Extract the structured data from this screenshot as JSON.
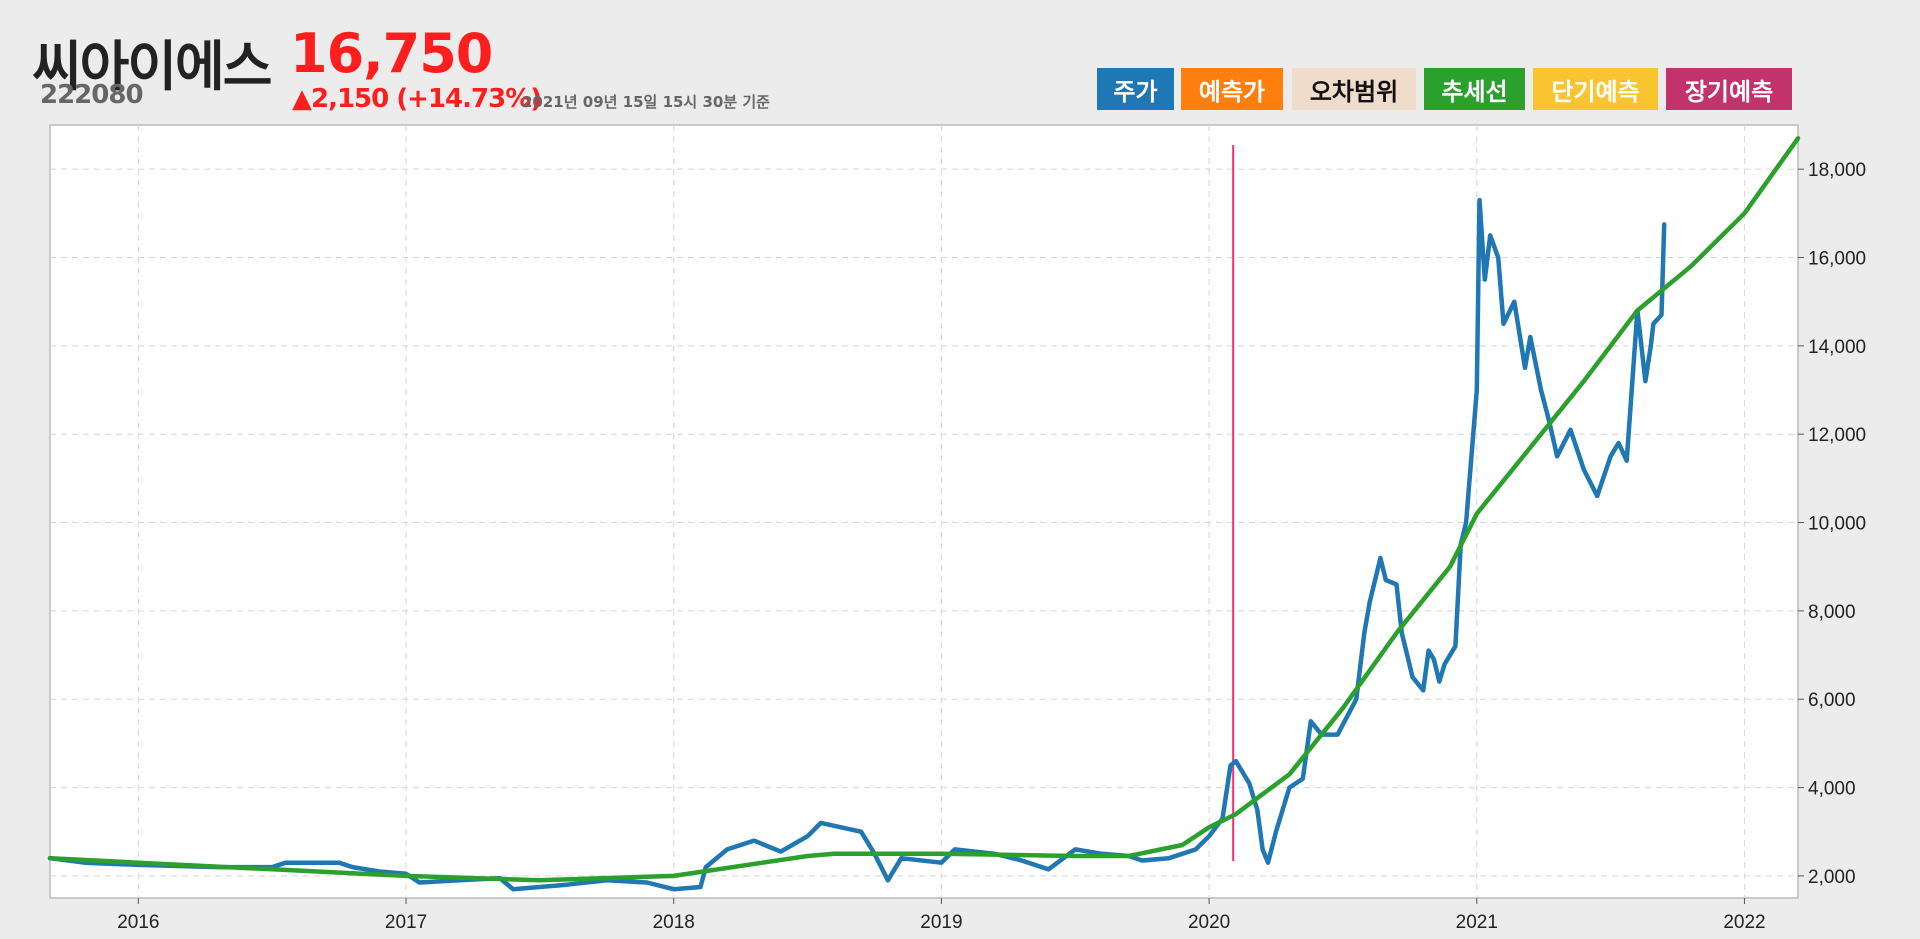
{
  "header": {
    "name": "씨아이에스",
    "code": "222080",
    "price": "16,750",
    "change": "▲2,150 (+14.73%)",
    "timestamp": "2021년 09년 15일 15시 30분 기준"
  },
  "legend": [
    {
      "label": "주가",
      "color": "#1f77b4",
      "text_color": "#ffffff"
    },
    {
      "label": "예측가",
      "color": "#ff7f0e",
      "text_color": "#ffffff"
    },
    {
      "label": "오차범위",
      "color": "#f0dccb",
      "text_color": "#111111"
    },
    {
      "label": "추세선",
      "color": "#2ca02c",
      "text_color": "#ffffff"
    },
    {
      "label": "단기예측",
      "color": "#f8c531",
      "text_color": "#ffffff"
    },
    {
      "label": "장기예측",
      "color": "#c2336c",
      "text_color": "#ffffff"
    }
  ],
  "chart_data": {
    "type": "line",
    "xlim": [
      2015.67,
      2022.2
    ],
    "ylim": [
      1500,
      19000
    ],
    "x_ticks": [
      2016,
      2017,
      2018,
      2019,
      2020,
      2021,
      2022
    ],
    "x_tick_labels": [
      "2016",
      "2017",
      "2018",
      "2019",
      "2020",
      "2021",
      "2022"
    ],
    "y_ticks": [
      2000,
      4000,
      6000,
      8000,
      10000,
      12000,
      14000,
      16000,
      18000
    ],
    "y_tick_labels": [
      "2,000",
      "4,000",
      "6,000",
      "8,000",
      "10,000",
      "12,000",
      "14,000",
      "16,000",
      "18,000"
    ],
    "grid": true,
    "vline_x": 2020.09,
    "vline_color": "#ff2d6e",
    "series": [
      {
        "color": "#1f77b4",
        "x": [
          2015.67,
          2015.8,
          2016.0,
          2016.3,
          2016.5,
          2016.55,
          2016.75,
          2016.8,
          2016.9,
          2017.0,
          2017.05,
          2017.2,
          2017.35,
          2017.4,
          2017.6,
          2017.75,
          2017.9,
          2018.0,
          2018.1,
          2018.12,
          2018.2,
          2018.3,
          2018.4,
          2018.5,
          2018.55,
          2018.7,
          2018.75,
          2018.8,
          2018.85,
          2019.0,
          2019.05,
          2019.2,
          2019.3,
          2019.4,
          2019.5,
          2019.6,
          2019.7,
          2019.75,
          2019.85,
          2019.95,
          2020.0,
          2020.05,
          2020.08,
          2020.1,
          2020.15,
          2020.18,
          2020.2,
          2020.22,
          2020.25,
          2020.3,
          2020.35,
          2020.38,
          2020.42,
          2020.48,
          2020.55,
          2020.58,
          2020.6,
          2020.62,
          2020.64,
          2020.66,
          2020.7,
          2020.72,
          2020.74,
          2020.76,
          2020.8,
          2020.82,
          2020.84,
          2020.86,
          2020.88,
          2020.92,
          2020.94,
          2020.96,
          2021.0,
          2021.01,
          2021.03,
          2021.05,
          2021.08,
          2021.1,
          2021.14,
          2021.18,
          2021.2,
          2021.24,
          2021.27,
          2021.3,
          2021.35,
          2021.4,
          2021.45,
          2021.5,
          2021.53,
          2021.56,
          2021.6,
          2021.63,
          2021.65,
          2021.66,
          2021.69,
          2021.7
        ],
        "values": [
          2400,
          2300,
          2250,
          2200,
          2200,
          2300,
          2300,
          2200,
          2100,
          2050,
          1850,
          1900,
          1950,
          1700,
          1800,
          1900,
          1850,
          1700,
          1750,
          2200,
          2600,
          2800,
          2550,
          2900,
          3200,
          3000,
          2500,
          1900,
          2400,
          2300,
          2600,
          2500,
          2350,
          2150,
          2600,
          2500,
          2450,
          2350,
          2400,
          2600,
          2900,
          3300,
          4500,
          4600,
          4100,
          3500,
          2600,
          2300,
          3000,
          4000,
          4200,
          5500,
          5200,
          5200,
          6000,
          7500,
          8200,
          8700,
          9200,
          8700,
          8600,
          7500,
          7000,
          6500,
          6200,
          7100,
          6900,
          6400,
          6800,
          7200,
          9500,
          10000,
          13000,
          17300,
          15500,
          16500,
          16000,
          14500,
          15000,
          13500,
          14200,
          13000,
          12300,
          11500,
          12100,
          11200,
          10600,
          11500,
          11800,
          11400,
          14800,
          13200,
          14000,
          14500,
          14700,
          16750
        ]
      },
      {
        "color": "#2ca02c",
        "x": [
          2015.67,
          2016.0,
          2016.5,
          2017.0,
          2017.5,
          2018.0,
          2018.5,
          2018.6,
          2019.0,
          2019.5,
          2019.7,
          2019.9,
          2020.0,
          2020.1,
          2020.3,
          2020.5,
          2020.7,
          2020.9,
          2021.0,
          2021.2,
          2021.4,
          2021.6,
          2021.8,
          2022.0,
          2022.2
        ],
        "values": [
          2400,
          2300,
          2150,
          2000,
          1900,
          2000,
          2450,
          2500,
          2500,
          2450,
          2450,
          2700,
          3100,
          3400,
          4300,
          5800,
          7500,
          9000,
          10200,
          11700,
          13200,
          14800,
          15800,
          17000,
          18700
        ]
      }
    ]
  }
}
